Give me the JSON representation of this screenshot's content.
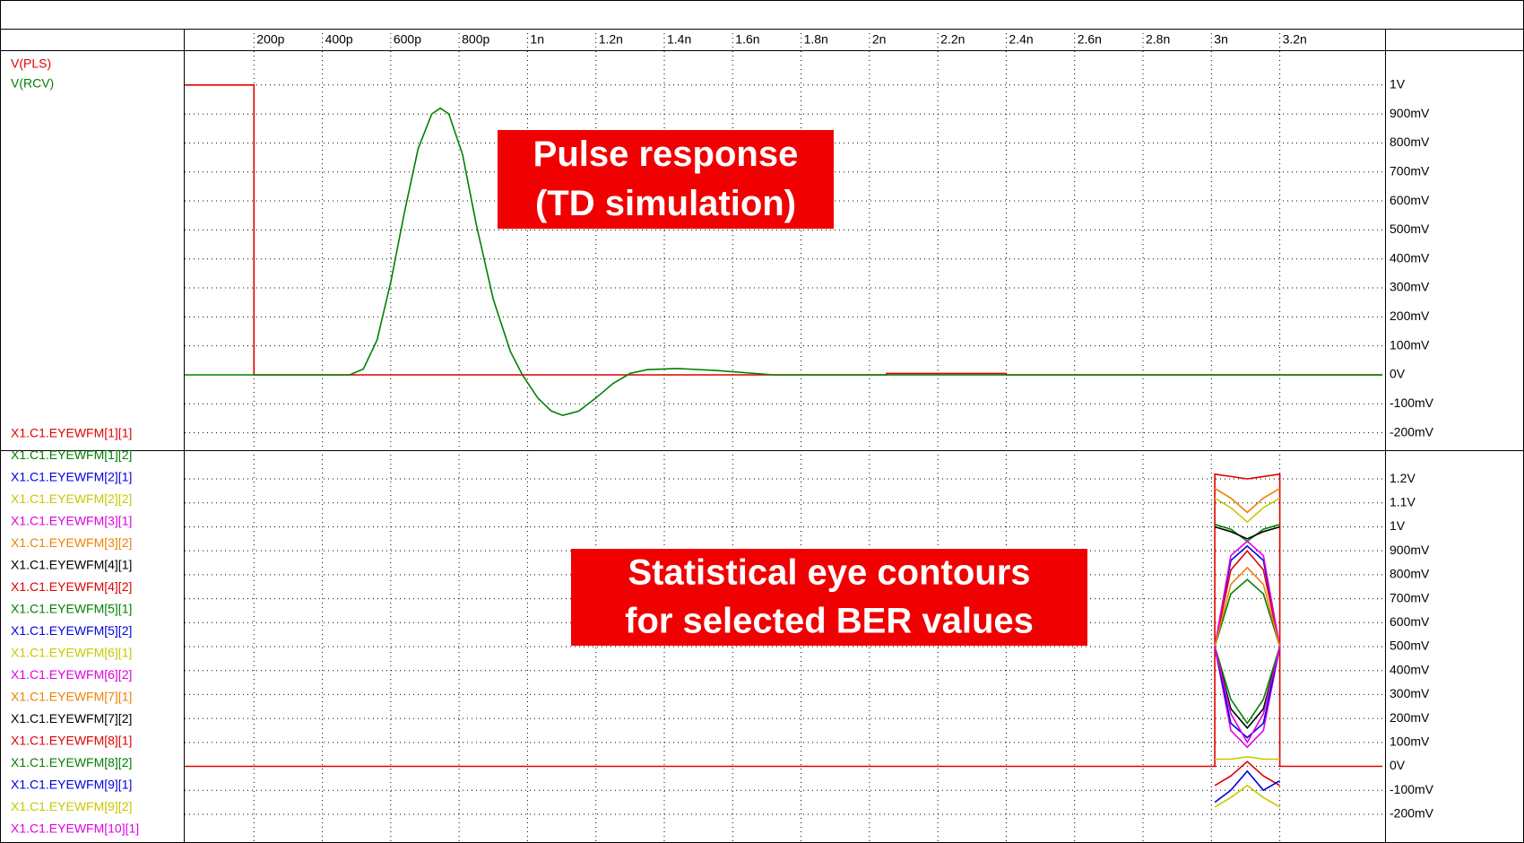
{
  "chart_data": [
    {
      "type": "line",
      "xlim": [
        0,
        3500
      ],
      "xticks": [
        {
          "value": 200,
          "label": "200p"
        },
        {
          "value": 400,
          "label": "400p"
        },
        {
          "value": 600,
          "label": "600p"
        },
        {
          "value": 800,
          "label": "800p"
        },
        {
          "value": 1000,
          "label": "1n"
        },
        {
          "value": 1200,
          "label": "1.2n"
        },
        {
          "value": 1400,
          "label": "1.4n"
        },
        {
          "value": 1600,
          "label": "1.6n"
        },
        {
          "value": 1800,
          "label": "1.8n"
        },
        {
          "value": 2000,
          "label": "2n"
        },
        {
          "value": 2200,
          "label": "2.2n"
        },
        {
          "value": 2400,
          "label": "2.4n"
        },
        {
          "value": 2600,
          "label": "2.6n"
        },
        {
          "value": 2800,
          "label": "2.8n"
        },
        {
          "value": 3000,
          "label": "3n"
        },
        {
          "value": 3200,
          "label": "3.2n"
        }
      ],
      "ylim": [
        -260,
        1120
      ],
      "yticks": [
        {
          "value": -200,
          "label": "-200mV"
        },
        {
          "value": -100,
          "label": "-100mV"
        },
        {
          "value": 0,
          "label": "0V"
        },
        {
          "value": 100,
          "label": "100mV"
        },
        {
          "value": 200,
          "label": "200mV"
        },
        {
          "value": 300,
          "label": "300mV"
        },
        {
          "value": 400,
          "label": "400mV"
        },
        {
          "value": 500,
          "label": "500mV"
        },
        {
          "value": 600,
          "label": "600mV"
        },
        {
          "value": 700,
          "label": "700mV"
        },
        {
          "value": 800,
          "label": "800mV"
        },
        {
          "value": 900,
          "label": "900mV"
        },
        {
          "value": 1000,
          "label": "1V"
        }
      ],
      "annotations": [
        {
          "lines": [
            "Pulse response",
            "(TD simulation)"
          ]
        }
      ],
      "series": [
        {
          "name": "V(PLS)",
          "color": "#e00000",
          "x": [
            0,
            200,
            200,
            2050,
            2050,
            2400,
            2400,
            3500
          ],
          "values": [
            1000,
            1000,
            0,
            0,
            5,
            5,
            0,
            0
          ]
        },
        {
          "name": "V(RCV)",
          "color": "#008000",
          "x": [
            0,
            480,
            520,
            560,
            600,
            640,
            680,
            720,
            745,
            770,
            810,
            850,
            900,
            950,
            985,
            1030,
            1070,
            1103,
            1150,
            1200,
            1250,
            1300,
            1350,
            1437,
            1550,
            1650,
            1720,
            3500
          ],
          "values": [
            0,
            0,
            20,
            120,
            320,
            560,
            780,
            900,
            920,
            900,
            760,
            520,
            260,
            80,
            0,
            -80,
            -125,
            -140,
            -125,
            -80,
            -30,
            5,
            18,
            22,
            15,
            6,
            0,
            0
          ]
        }
      ]
    },
    {
      "type": "line",
      "xlim": [
        0,
        3500
      ],
      "ylim": [
        -320,
        1320
      ],
      "yticks": [
        {
          "value": -200,
          "label": "-200mV"
        },
        {
          "value": -100,
          "label": "-100mV"
        },
        {
          "value": 0,
          "label": "0V"
        },
        {
          "value": 100,
          "label": "100mV"
        },
        {
          "value": 200,
          "label": "200mV"
        },
        {
          "value": 300,
          "label": "300mV"
        },
        {
          "value": 400,
          "label": "400mV"
        },
        {
          "value": 500,
          "label": "500mV"
        },
        {
          "value": 600,
          "label": "600mV"
        },
        {
          "value": 700,
          "label": "700mV"
        },
        {
          "value": 800,
          "label": "800mV"
        },
        {
          "value": 900,
          "label": "900mV"
        },
        {
          "value": 1000,
          "label": "1V"
        },
        {
          "value": 1100,
          "label": "1.1V"
        },
        {
          "value": 1200,
          "label": "1.2V"
        }
      ],
      "annotations": [
        {
          "lines": [
            "Statistical eye contours",
            "for selected BER values"
          ]
        }
      ],
      "series": [
        {
          "name": "X1.C1.EYEWFM[1][1]",
          "color": "#e00000",
          "x": [
            0,
            3010,
            3010,
            3105,
            3200,
            3200,
            3500
          ],
          "values": [
            0,
            0,
            1220,
            1200,
            1220,
            0,
            0
          ]
        },
        {
          "name": "X1.C1.EYEWFM[1][2]",
          "color": "#008000",
          "x": [
            3010,
            3057,
            3105,
            3152,
            3200
          ],
          "values": [
            1010,
            990,
            940,
            990,
            1010
          ]
        },
        {
          "name": "X1.C1.EYEWFM[2][1]",
          "color": "#0000e0",
          "x": [
            3010,
            3057,
            3105,
            3152,
            3200
          ],
          "values": [
            500,
            860,
            920,
            860,
            500
          ]
        },
        {
          "name": "X1.C1.EYEWFM[2][2]",
          "color": "#c8c800",
          "x": [
            3010,
            3057,
            3105,
            3152,
            3200
          ],
          "values": [
            1120,
            1080,
            1020,
            1080,
            1120
          ]
        },
        {
          "name": "X1.C1.EYEWFM[3][1]",
          "color": "#e000e0",
          "x": [
            3010,
            3057,
            3105,
            3152,
            3200
          ],
          "values": [
            500,
            150,
            80,
            150,
            500
          ]
        },
        {
          "name": "X1.C1.EYEWFM[3][2]",
          "color": "#f08000",
          "x": [
            3010,
            3057,
            3105,
            3152,
            3200
          ],
          "values": [
            1160,
            1120,
            1060,
            1120,
            1160
          ]
        },
        {
          "name": "X1.C1.EYEWFM[4][1]",
          "color": "#000000",
          "x": [
            3010,
            3057,
            3105,
            3152,
            3200
          ],
          "values": [
            1000,
            980,
            950,
            980,
            1000
          ]
        },
        {
          "name": "X1.C1.EYEWFM[4][2]",
          "color": "#e00000",
          "x": [
            3010,
            3057,
            3105,
            3152,
            3200
          ],
          "values": [
            500,
            820,
            900,
            820,
            500
          ]
        },
        {
          "name": "X1.C1.EYEWFM[5][1]",
          "color": "#008000",
          "x": [
            3010,
            3057,
            3105,
            3152,
            3200
          ],
          "values": [
            500,
            720,
            780,
            720,
            500
          ]
        },
        {
          "name": "X1.C1.EYEWFM[5][2]",
          "color": "#0000e0",
          "x": [
            3010,
            3057,
            3105,
            3152,
            3200
          ],
          "values": [
            500,
            180,
            120,
            180,
            500
          ]
        },
        {
          "name": "X1.C1.EYEWFM[6][1]",
          "color": "#c8c800",
          "x": [
            3010,
            3057,
            3105,
            3152,
            3200
          ],
          "values": [
            30,
            30,
            40,
            30,
            30
          ]
        },
        {
          "name": "X1.C1.EYEWFM[6][2]",
          "color": "#e000e0",
          "x": [
            3010,
            3057,
            3105,
            3152,
            3200
          ],
          "values": [
            500,
            880,
            940,
            880,
            500
          ]
        },
        {
          "name": "X1.C1.EYEWFM[7][1]",
          "color": "#f08000",
          "x": [
            3010,
            3057,
            3105,
            3152,
            3200
          ],
          "values": [
            500,
            760,
            830,
            760,
            500
          ]
        },
        {
          "name": "X1.C1.EYEWFM[7][2]",
          "color": "#000000",
          "x": [
            3010,
            3057,
            3105,
            3152,
            3200
          ],
          "values": [
            500,
            240,
            160,
            240,
            500
          ]
        },
        {
          "name": "X1.C1.EYEWFM[8][1]",
          "color": "#e00000",
          "x": [
            3010,
            3057,
            3105,
            3152,
            3200
          ],
          "values": [
            -80,
            -40,
            20,
            -40,
            -80
          ]
        },
        {
          "name": "X1.C1.EYEWFM[8][2]",
          "color": "#008000",
          "x": [
            3010,
            3057,
            3105,
            3152,
            3200
          ],
          "values": [
            500,
            280,
            180,
            280,
            500
          ]
        },
        {
          "name": "X1.C1.EYEWFM[9][1]",
          "color": "#0000e0",
          "x": [
            3010,
            3057,
            3105,
            3152,
            3200
          ],
          "values": [
            -150,
            -100,
            -20,
            -100,
            -60
          ]
        },
        {
          "name": "X1.C1.EYEWFM[9][2]",
          "color": "#c8c800",
          "x": [
            3010,
            3057,
            3105,
            3152,
            3200
          ],
          "values": [
            -170,
            -130,
            -80,
            -130,
            -170
          ]
        },
        {
          "name": "X1.C1.EYEWFM[10][1]",
          "color": "#e000e0",
          "x": [
            3010,
            3057,
            3105,
            3152,
            3200
          ],
          "values": [
            500,
            220,
            100,
            220,
            500
          ]
        }
      ]
    }
  ]
}
